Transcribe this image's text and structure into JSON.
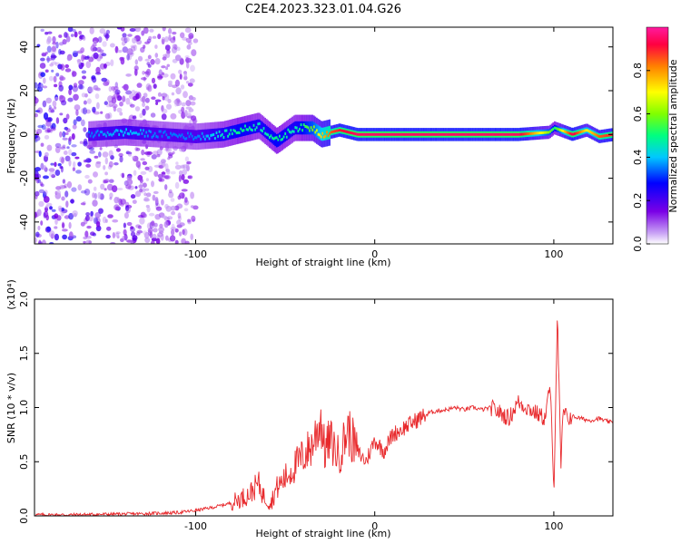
{
  "title": "C2E4.2023.323.01.04.G26",
  "colors": {
    "snr_line": "#e8282b",
    "axis": "#000000",
    "background": "#ffffff",
    "colormap": [
      "#ffffff",
      "#7a00e6",
      "#0000ff",
      "#00c8ff",
      "#00ff80",
      "#80ff00",
      "#ffff00",
      "#ff8000",
      "#ff0040",
      "#ff1aa0"
    ]
  },
  "chart_data": [
    {
      "type": "heatmap",
      "title": "",
      "xlabel": "Height of straight line (km)",
      "ylabel": "Frequency (Hz)",
      "xlim": [
        -190,
        133
      ],
      "ylim": [
        -50,
        49
      ],
      "xticks": [
        -100,
        0,
        100
      ],
      "yticks": [
        -40,
        -20,
        0,
        20,
        40
      ],
      "colorbar": {
        "label": "Normalized spectral amplitude",
        "range": [
          0.0,
          1.0
        ],
        "ticks": [
          "0.0",
          "0.2",
          "0.4",
          "0.6",
          "0.8"
        ]
      },
      "ridge": {
        "description_points_x": [
          -160,
          -140,
          -120,
          -100,
          -85,
          -75,
          -65,
          -55,
          -45,
          -35,
          -30,
          -25,
          -20,
          -10,
          0,
          20,
          50,
          80,
          97,
          100,
          110,
          118,
          125,
          133
        ],
        "description_points_y": [
          0,
          1,
          0,
          -1,
          0,
          2,
          4,
          -3,
          3,
          3,
          0,
          1,
          2,
          0,
          0,
          0,
          0,
          0,
          1,
          3,
          0,
          2,
          -1,
          0
        ],
        "amplitude": [
          0.35,
          0.4,
          0.35,
          0.35,
          0.45,
          0.5,
          0.45,
          0.5,
          0.45,
          0.6,
          0.75,
          0.85,
          0.9,
          0.95,
          0.95,
          0.95,
          0.95,
          0.95,
          0.6,
          0.5,
          0.95,
          0.7,
          0.85,
          0.9
        ]
      },
      "noise_region_x": [
        -190,
        -100
      ]
    },
    {
      "type": "line",
      "title": "",
      "xlabel": "Height of straight line (km)",
      "ylabel": "SNR (10 * v/v)",
      "scale_label": "(x10⁴)",
      "xlim": [
        -190,
        133
      ],
      "ylim": [
        0,
        2.0
      ],
      "xticks": [
        -100,
        0,
        100
      ],
      "yticks": [
        "0.0",
        "0.5",
        "1.0",
        "1.5",
        "2.0"
      ],
      "ytick_values": [
        0,
        0.5,
        1.0,
        1.5,
        2.0
      ],
      "series": [
        {
          "x": [
            -190,
            -170,
            -150,
            -130,
            -110,
            -100,
            -90,
            -80,
            -70,
            -65,
            -62,
            -58,
            -55,
            -50,
            -45,
            -40,
            -35,
            -30,
            -28,
            -25,
            -20,
            -15,
            -10,
            -5,
            0,
            5,
            10,
            15,
            20,
            25,
            30,
            35,
            40,
            45,
            50,
            55,
            60,
            65,
            70,
            75,
            80,
            85,
            90,
            95,
            98,
            100,
            102,
            104,
            105,
            108,
            110,
            115,
            120,
            125,
            130,
            133
          ],
          "values": [
            0.01,
            0.01,
            0.015,
            0.02,
            0.03,
            0.05,
            0.08,
            0.12,
            0.2,
            0.3,
            0.18,
            0.12,
            0.25,
            0.35,
            0.45,
            0.55,
            0.65,
            0.9,
            0.6,
            0.7,
            0.55,
            0.8,
            0.6,
            0.5,
            0.7,
            0.6,
            0.75,
            0.8,
            0.85,
            0.9,
            0.95,
            0.97,
            0.98,
            1.0,
            0.98,
            1.0,
            0.98,
            1.0,
            0.95,
            0.9,
            1.05,
            1.0,
            0.95,
            0.9,
            1.2,
            0.2,
            1.9,
            0.4,
            0.95,
            0.9,
            0.92,
            0.9,
            0.88,
            0.9,
            0.87,
            0.86
          ]
        }
      ]
    }
  ]
}
